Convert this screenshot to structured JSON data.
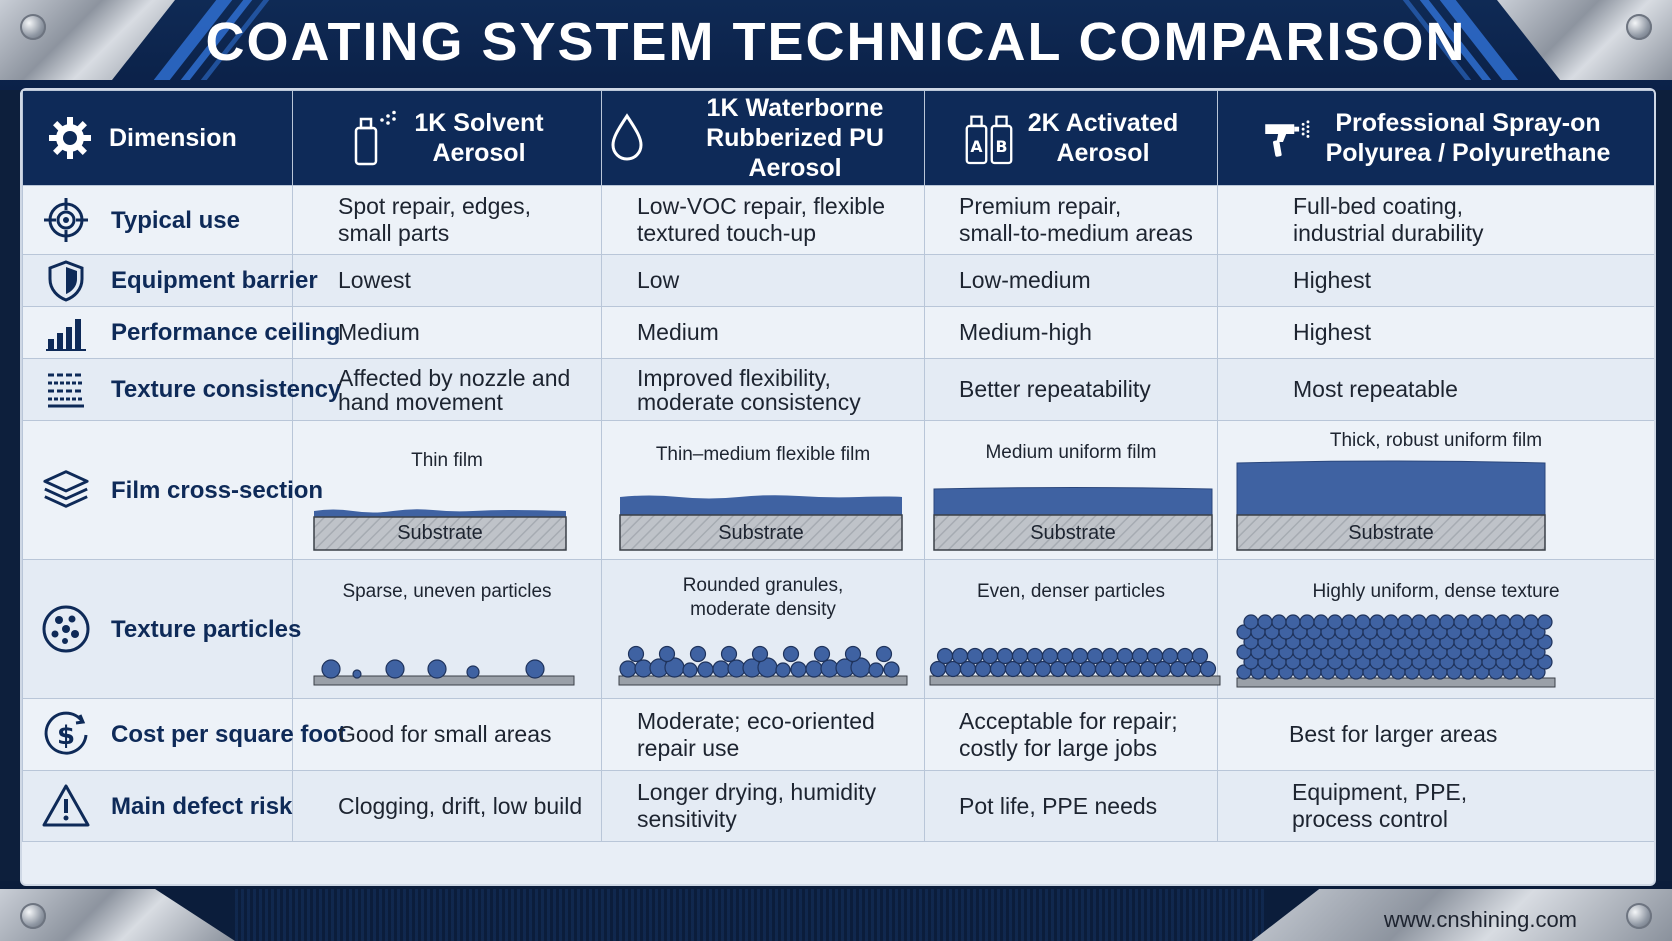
{
  "title": "COATING SYSTEM TECHNICAL COMPARISON",
  "footer_url": "www.cnshining.com",
  "header": {
    "dimension": "Dimension",
    "columns": [
      {
        "line1": "1K Solvent",
        "line2": "Aerosol",
        "icon": "spray-can-icon"
      },
      {
        "line1": "1K Waterborne",
        "line2": "Rubberized PU Aerosol",
        "icon": "water-drop-icon"
      },
      {
        "line1": "2K Activated",
        "line2": "Aerosol",
        "icon": "ab-cans-icon"
      },
      {
        "line1": "Professional Spray-on",
        "line2": "Polyurea / Polyurethane",
        "icon": "spray-gun-icon"
      }
    ]
  },
  "rows": {
    "typical_use": {
      "label": "Typical use",
      "icon": "target-icon",
      "values": [
        [
          "Spot repair, edges,",
          "small parts"
        ],
        [
          "Low-VOC repair, flexible",
          "textured touch-up"
        ],
        [
          "Premium repair,",
          "small-to-medium areas"
        ],
        [
          "Full-bed coating,",
          "industrial durability"
        ]
      ]
    },
    "equipment_barrier": {
      "label": "Equipment barrier",
      "icon": "shield-icon",
      "values": [
        "Lowest",
        "Low",
        "Low-medium",
        "Highest"
      ]
    },
    "performance_ceiling": {
      "label": "Performance ceiling",
      "icon": "bar-chart-icon",
      "values": [
        "Medium",
        "Medium",
        "Medium-high",
        "Highest"
      ]
    },
    "texture_consistency": {
      "label": "Texture consistency",
      "icon": "texture-grid-icon",
      "values": [
        [
          "Affected by nozzle and",
          "hand movement"
        ],
        [
          "Improved flexibility,",
          "moderate consistency"
        ],
        [
          "Better repeatability",
          ""
        ],
        [
          "Most repeatable",
          ""
        ]
      ]
    },
    "film_cross_section": {
      "label": "Film cross-section",
      "icon": "layers-icon",
      "substrate_label": "Substrate",
      "captions": [
        "Thin film",
        "Thin–medium flexible film",
        "Medium uniform film",
        "Thick, robust uniform film"
      ]
    },
    "texture_particles": {
      "label": "Texture particles",
      "icon": "particles-icon",
      "captions": [
        [
          "Sparse, uneven particles",
          ""
        ],
        [
          "Rounded granules,",
          "moderate density"
        ],
        [
          "Even, denser particles",
          ""
        ],
        [
          "Highly uniform, dense texture",
          ""
        ]
      ]
    },
    "cost": {
      "label": "Cost per square foot",
      "icon": "dollar-icon",
      "values": [
        [
          "Good for small areas",
          ""
        ],
        [
          "Moderate; eco-oriented",
          "repair use"
        ],
        [
          "Acceptable for repair;",
          "costly for large jobs"
        ],
        [
          "Best for larger areas",
          ""
        ]
      ]
    },
    "defect": {
      "label": "Main defect risk",
      "icon": "warning-icon",
      "values": [
        [
          "Clogging, drift, low build",
          ""
        ],
        [
          "Longer drying, humidity",
          "sensitivity"
        ],
        [
          "Pot life, PPE needs",
          ""
        ],
        [
          "Equipment, PPE,",
          "process control"
        ]
      ]
    }
  },
  "colors": {
    "navy": "#0e2a58",
    "film_blue": "#3f62a2",
    "substrate_gray": "#bfc3c9",
    "accent_blue": "#2f6fd0"
  }
}
